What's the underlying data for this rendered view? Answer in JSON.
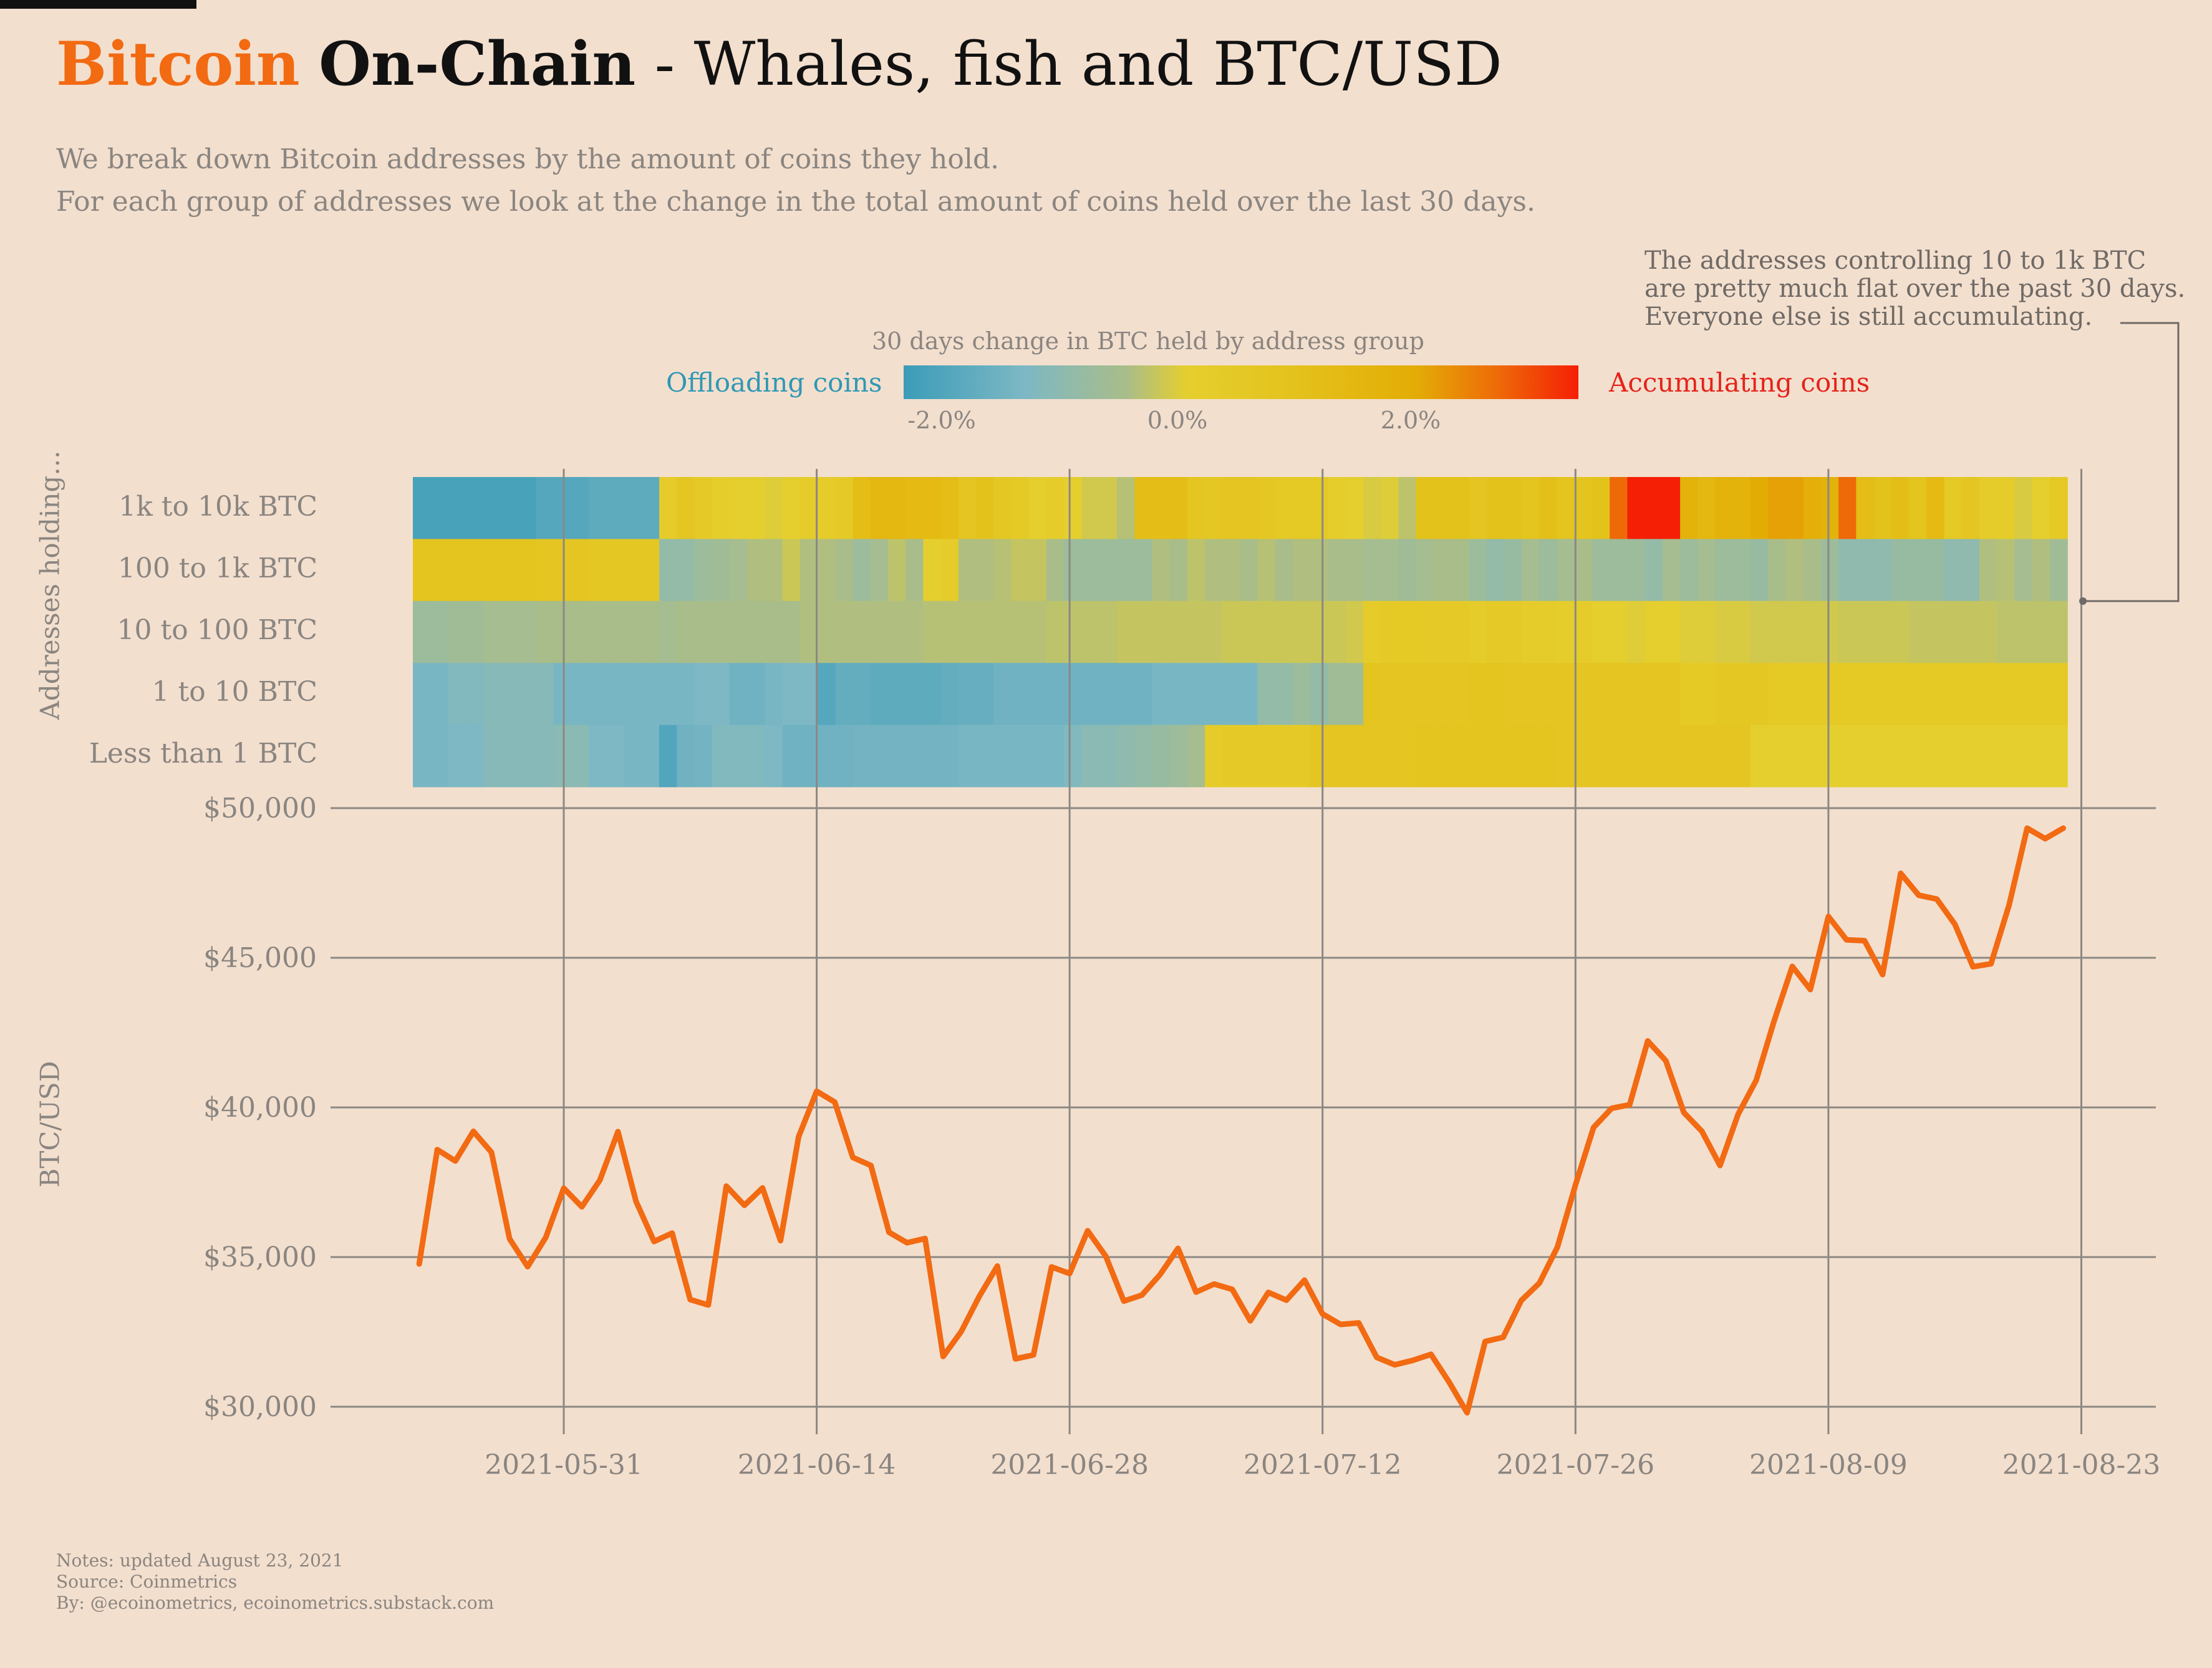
{
  "header": {
    "title_part1": "Bitcoin",
    "title_part2": "On-Chain",
    "title_part3": "- Whales, fish and BTC/USD",
    "subtitle_line1": "We break down Bitcoin addresses by the amount of coins they hold.",
    "subtitle_line2": "For each group of addresses we look at the change in the total amount of coins held over the last 30 days."
  },
  "annotation": {
    "line1": "The addresses controlling 10 to 1k BTC",
    "line2": "are pretty much flat over the past 30 days.",
    "line3": "Everyone else is still accumulating."
  },
  "legend": {
    "title": "30 days change in BTC held by address group",
    "left_label": "Offloading coins",
    "right_label": "Accumulating coins",
    "ticks": [
      "-2.0%",
      "0.0%",
      "2.0%"
    ],
    "colors": {
      "negative": "#3b9cb8",
      "neutral": "#e5cf2e",
      "positive": "#f51f05"
    }
  },
  "footer": {
    "line1": "Notes: updated August 23, 2021",
    "line2": "Source: Coinmetrics",
    "line3": "By: @ecoinometrics, ecoinometrics.substack.com"
  },
  "chart_data": [
    {
      "type": "heatmap",
      "ylabel": "Addresses holding...",
      "x_start_date": "2021-05-23",
      "x_end_date": "2021-08-23",
      "color_range_percent": [
        -2.8,
        3.5
      ],
      "rows": [
        {
          "label": "1k to 10k BTC",
          "values": [
            -2.5,
            -2.5,
            -2.5,
            -2.5,
            -2.5,
            -2.5,
            -2.5,
            -2.2,
            -2.2,
            -2.2,
            -2.0,
            -2.0,
            -2.0,
            -2.0,
            0.8,
            1.2,
            0.9,
            0.7,
            0.6,
            0.6,
            0.5,
            0.6,
            0.8,
            0.8,
            0.9,
            1.6,
            1.8,
            1.8,
            1.7,
            1.7,
            1.6,
            1.2,
            1.4,
            1.1,
            1.0,
            0.6,
            0.8,
            0.6,
            0.3,
            0.3,
            -0.1,
            1.6,
            1.6,
            1.6,
            1.2,
            1.1,
            1.2,
            1.2,
            1.1,
            1.0,
            1.0,
            1.0,
            0.7,
            0.6,
            0.4,
            0.5,
            0.0,
            1.4,
            1.4,
            1.4,
            1.2,
            1.4,
            1.4,
            1.3,
            1.5,
            1.3,
            1.3,
            1.4,
            2.8,
            3.5,
            3.5,
            3.5,
            2.0,
            1.8,
            2.0,
            2.0,
            2.2,
            2.3,
            2.3,
            2.1,
            2.0,
            2.8,
            1.6,
            1.4,
            1.6,
            1.3,
            1.7,
            1.0,
            1.2,
            0.8,
            0.8,
            0.4,
            0.6,
            1.0
          ]
        },
        {
          "label": "100 to 1k BTC",
          "values": [
            1.3,
            1.3,
            1.3,
            1.3,
            1.3,
            1.3,
            1.3,
            1.2,
            1.2,
            1.2,
            1.1,
            1.1,
            1.1,
            1.1,
            -0.8,
            -0.8,
            -0.6,
            -0.5,
            -0.4,
            -0.2,
            -0.2,
            0.2,
            -0.2,
            -0.2,
            -0.3,
            -0.6,
            -0.4,
            0.0,
            -0.3,
            0.6,
            0.8,
            -0.2,
            -0.2,
            -0.1,
            0.1,
            0.1,
            -0.3,
            -0.6,
            -0.6,
            -0.6,
            -0.6,
            -0.6,
            -0.2,
            -0.3,
            0.0,
            -0.2,
            -0.2,
            -0.3,
            -0.1,
            -0.3,
            -0.2,
            -0.2,
            -0.3,
            -0.3,
            -0.4,
            -0.4,
            -0.5,
            -0.4,
            -0.3,
            -0.3,
            -0.6,
            -0.8,
            -0.7,
            -0.4,
            -0.6,
            -0.4,
            -0.3,
            -0.6,
            -0.6,
            -0.6,
            -0.8,
            -0.4,
            -0.6,
            -0.4,
            -0.6,
            -0.6,
            -0.7,
            -0.3,
            -0.2,
            -0.3,
            -0.6,
            -0.9,
            -0.9,
            -0.9,
            -0.7,
            -0.7,
            -0.7,
            -0.9,
            -0.9,
            -0.2,
            -0.1,
            -0.4,
            -0.2,
            -0.5
          ]
        },
        {
          "label": "10 to 100 BTC",
          "values": [
            -0.6,
            -0.6,
            -0.5,
            -0.5,
            -0.4,
            -0.4,
            -0.4,
            -0.3,
            -0.3,
            -0.3,
            -0.3,
            -0.3,
            -0.3,
            -0.3,
            -0.4,
            -0.3,
            -0.3,
            -0.3,
            -0.3,
            -0.3,
            -0.3,
            -0.3,
            -0.2,
            -0.2,
            -0.2,
            -0.2,
            -0.2,
            -0.2,
            -0.2,
            -0.1,
            -0.1,
            -0.1,
            -0.1,
            -0.1,
            -0.1,
            -0.1,
            0.0,
            0.0,
            0.0,
            0.0,
            0.1,
            0.1,
            0.1,
            0.1,
            0.1,
            0.1,
            0.2,
            0.2,
            0.2,
            0.2,
            0.2,
            0.2,
            0.2,
            0.3,
            0.8,
            0.9,
            1.0,
            0.9,
            0.9,
            0.9,
            0.8,
            0.9,
            0.9,
            0.8,
            0.8,
            0.7,
            0.8,
            0.6,
            0.6,
            0.5,
            0.6,
            0.6,
            0.5,
            0.5,
            0.4,
            0.4,
            0.3,
            0.3,
            0.3,
            0.3,
            0.3,
            0.2,
            0.2,
            0.2,
            0.2,
            0.1,
            0.1,
            0.1,
            0.1,
            0.1,
            0.0,
            0.0,
            0.0,
            0.0
          ]
        },
        {
          "label": "1 to 10 BTC",
          "values": [
            -1.4,
            -1.4,
            -1.2,
            -1.2,
            -1.1,
            -1.1,
            -1.1,
            -1.1,
            -1.4,
            -1.4,
            -1.4,
            -1.4,
            -1.4,
            -1.4,
            -1.4,
            -1.4,
            -1.3,
            -1.3,
            -1.6,
            -1.6,
            -1.4,
            -1.3,
            -1.3,
            -2.2,
            -1.9,
            -1.9,
            -2.0,
            -2.0,
            -2.0,
            -2.0,
            -1.9,
            -1.8,
            -1.8,
            -1.6,
            -1.6,
            -1.6,
            -1.6,
            -1.6,
            -1.6,
            -1.6,
            -1.6,
            -1.6,
            -1.4,
            -1.4,
            -1.4,
            -1.4,
            -1.4,
            -1.4,
            -0.8,
            -0.8,
            -0.6,
            -0.8,
            -0.5,
            -0.5,
            1.3,
            1.2,
            1.2,
            1.2,
            1.2,
            1.2,
            1.3,
            1.3,
            1.2,
            1.2,
            1.2,
            1.2,
            1.2,
            1.2,
            1.2,
            1.2,
            1.2,
            1.2,
            1.0,
            1.0,
            1.1,
            1.1,
            1.1,
            1.0,
            1.0,
            1.0,
            1.0,
            1.0,
            1.0,
            1.0,
            1.0,
            1.0,
            1.0,
            1.0,
            1.0,
            1.0,
            1.0,
            1.0,
            1.0,
            1.0
          ]
        },
        {
          "label": "Less than 1 BTC",
          "values": [
            -1.4,
            -1.4,
            -1.3,
            -1.3,
            -1.1,
            -1.1,
            -1.1,
            -1.1,
            -1.0,
            -1.0,
            -1.3,
            -1.3,
            -1.4,
            -1.4,
            -2.3,
            -1.6,
            -1.5,
            -1.2,
            -1.2,
            -1.2,
            -1.3,
            -1.6,
            -1.6,
            -1.6,
            -1.6,
            -1.5,
            -1.5,
            -1.5,
            -1.5,
            -1.5,
            -1.5,
            -1.4,
            -1.4,
            -1.4,
            -1.4,
            -1.4,
            -1.4,
            -1.2,
            -1.0,
            -1.0,
            -0.9,
            -0.8,
            -0.7,
            -0.6,
            -0.4,
            0.8,
            0.9,
            0.9,
            0.9,
            0.9,
            0.9,
            1.2,
            1.2,
            1.2,
            1.2,
            1.2,
            1.2,
            1.3,
            1.3,
            1.3,
            1.3,
            1.3,
            1.3,
            1.3,
            1.3,
            1.2,
            1.2,
            1.2,
            1.2,
            1.2,
            1.2,
            1.2,
            1.2,
            1.2,
            1.2,
            1.2,
            0.6,
            0.6,
            0.6,
            0.6,
            0.6,
            0.6,
            0.6,
            0.6,
            0.6,
            0.6,
            0.6,
            0.6,
            0.6,
            0.6,
            0.6,
            0.6,
            0.6,
            0.6
          ]
        }
      ]
    },
    {
      "type": "line",
      "ylabel": "BTC/USD",
      "ylim": [
        30000,
        50000
      ],
      "y_ticks": [
        "$30,000",
        "$35,000",
        "$40,000",
        "$45,000",
        "$50,000"
      ],
      "x_ticks": [
        "2021-05-31",
        "2021-06-14",
        "2021-06-28",
        "2021-07-12",
        "2021-07-26",
        "2021-08-09",
        "2021-08-23"
      ],
      "x_start_date": "2021-05-23",
      "series_color": "#f26a12",
      "values": [
        34770,
        38590,
        38210,
        39200,
        38500,
        35610,
        34680,
        35650,
        37300,
        36680,
        37570,
        39190,
        36860,
        35520,
        35800,
        33580,
        33400,
        37370,
        36730,
        37310,
        35550,
        39020,
        40540,
        40180,
        38330,
        38060,
        35830,
        35480,
        35620,
        31680,
        32510,
        33690,
        34700,
        31600,
        31730,
        34670,
        34450,
        35880,
        35030,
        33530,
        33730,
        34410,
        35290,
        33830,
        34100,
        33920,
        32870,
        33820,
        33560,
        34230,
        33100,
        32750,
        32800,
        31650,
        31400,
        31550,
        31750,
        30830,
        29800,
        32180,
        32320,
        33550,
        34130,
        35330,
        37410,
        39330,
        39970,
        40090,
        42220,
        41560,
        39830,
        39200,
        38060,
        39770,
        40900,
        42900,
        44710,
        43940,
        46380,
        45600,
        45570,
        44440,
        47820,
        47090,
        46960,
        46120,
        44700,
        44800,
        46760,
        49330,
        48980,
        49330
      ]
    }
  ]
}
